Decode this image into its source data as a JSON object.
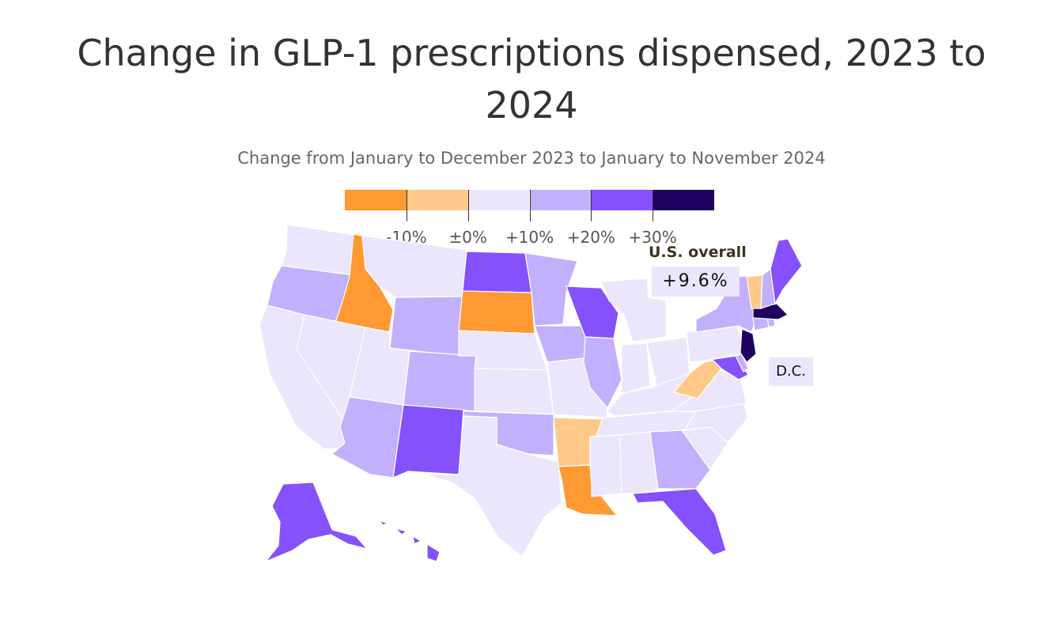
{
  "title": "Change in GLP-1 prescriptions dispensed, 2023 to 2024",
  "subtitle": "Change from January to December 2023 to January to November 2024",
  "legend": {
    "bins": [
      {
        "color": "#ff9933"
      },
      {
        "color": "#ffc98a"
      },
      {
        "color": "#ebe6fb"
      },
      {
        "color": "#c2b0fc"
      },
      {
        "color": "#8451fc"
      },
      {
        "color": "#1f0061"
      }
    ],
    "tick_labels": [
      "-10%",
      "±0%",
      "+10%",
      "+20%",
      "+30%"
    ]
  },
  "us_overall": {
    "label": "U.S. overall",
    "value": "+9.6%"
  },
  "dc_label": "D.C.",
  "colors": {
    "c1": "#ff9933",
    "c2": "#ffc98a",
    "c3": "#ebe6fb",
    "c4": "#c2b0fc",
    "c5": "#8451fc",
    "c6": "#1f0061"
  },
  "states": [
    {
      "id": "WA",
      "bin": 3
    },
    {
      "id": "OR",
      "bin": 4
    },
    {
      "id": "CA",
      "bin": 3
    },
    {
      "id": "ID",
      "bin": 1
    },
    {
      "id": "NV",
      "bin": 3
    },
    {
      "id": "MT",
      "bin": 3
    },
    {
      "id": "WY",
      "bin": 4
    },
    {
      "id": "UT",
      "bin": 3
    },
    {
      "id": "AZ",
      "bin": 4
    },
    {
      "id": "CO",
      "bin": 4
    },
    {
      "id": "NM",
      "bin": 5
    },
    {
      "id": "ND",
      "bin": 5
    },
    {
      "id": "SD",
      "bin": 1
    },
    {
      "id": "NE",
      "bin": 3
    },
    {
      "id": "KS",
      "bin": 3
    },
    {
      "id": "OK",
      "bin": 4
    },
    {
      "id": "TX",
      "bin": 3
    },
    {
      "id": "MN",
      "bin": 4
    },
    {
      "id": "IA",
      "bin": 4
    },
    {
      "id": "MO",
      "bin": 3
    },
    {
      "id": "AR",
      "bin": 2
    },
    {
      "id": "LA",
      "bin": 1
    },
    {
      "id": "WI",
      "bin": 5
    },
    {
      "id": "IL",
      "bin": 4
    },
    {
      "id": "MI",
      "bin": 3
    },
    {
      "id": "IN",
      "bin": 3
    },
    {
      "id": "OH",
      "bin": 3
    },
    {
      "id": "KY",
      "bin": 3
    },
    {
      "id": "TN",
      "bin": 3
    },
    {
      "id": "MS",
      "bin": 3
    },
    {
      "id": "AL",
      "bin": 3
    },
    {
      "id": "GA",
      "bin": 4
    },
    {
      "id": "FL",
      "bin": 5
    },
    {
      "id": "SC",
      "bin": 3
    },
    {
      "id": "NC",
      "bin": 3
    },
    {
      "id": "VA",
      "bin": 3
    },
    {
      "id": "WV",
      "bin": 2
    },
    {
      "id": "MD",
      "bin": 5
    },
    {
      "id": "DE",
      "bin": 4
    },
    {
      "id": "PA",
      "bin": 3
    },
    {
      "id": "NJ",
      "bin": 6
    },
    {
      "id": "NY",
      "bin": 4
    },
    {
      "id": "CT",
      "bin": 4
    },
    {
      "id": "RI",
      "bin": 4
    },
    {
      "id": "MA",
      "bin": 6
    },
    {
      "id": "VT",
      "bin": 2
    },
    {
      "id": "NH",
      "bin": 4
    },
    {
      "id": "ME",
      "bin": 5
    },
    {
      "id": "AK",
      "bin": 5
    },
    {
      "id": "HI",
      "bin": 5
    }
  ]
}
